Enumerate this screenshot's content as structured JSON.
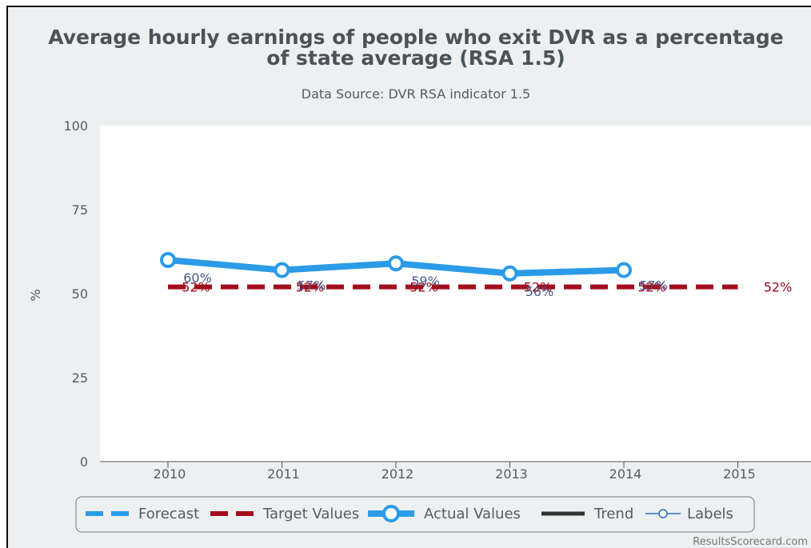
{
  "chart_data": {
    "type": "line",
    "title_line1": "Average hourly earnings of people who exit DVR as a percentage",
    "title_line2": "of state average (RSA 1.5)",
    "subtitle": "Data Source: DVR RSA indicator 1.5",
    "ylabel": "%",
    "ylim": [
      0,
      100
    ],
    "yticks": [
      0,
      25,
      50,
      75,
      100
    ],
    "categories": [
      "2010",
      "2011",
      "2012",
      "2013",
      "2014",
      "2015"
    ],
    "series": [
      {
        "name": "Actual Values",
        "color": "#2b9be8",
        "values": [
          60,
          57,
          59,
          56,
          57,
          null
        ],
        "labels": [
          "60%",
          "57%",
          "59%",
          "56%",
          "57%",
          ""
        ]
      },
      {
        "name": "Target Values",
        "color": "#a30d1c",
        "values": [
          52,
          52,
          52,
          52,
          52,
          52
        ],
        "labels": [
          "52%",
          "52%",
          "52%",
          "52%",
          "52%",
          "52%"
        ]
      }
    ],
    "legend": {
      "position": "bottom",
      "items": [
        {
          "name": "Forecast",
          "color": "#2b9be8",
          "style": "dashed"
        },
        {
          "name": "Target Values",
          "color": "#a30d1c",
          "style": "dashed"
        },
        {
          "name": "Actual Values",
          "color": "#2b9be8",
          "style": "marker-line"
        },
        {
          "name": "Trend",
          "color": "#333333",
          "style": "solid"
        },
        {
          "name": "Labels",
          "color": "#2b6fc2",
          "style": "thin-marker"
        }
      ]
    },
    "credit": "ResultsScorecard.com"
  }
}
